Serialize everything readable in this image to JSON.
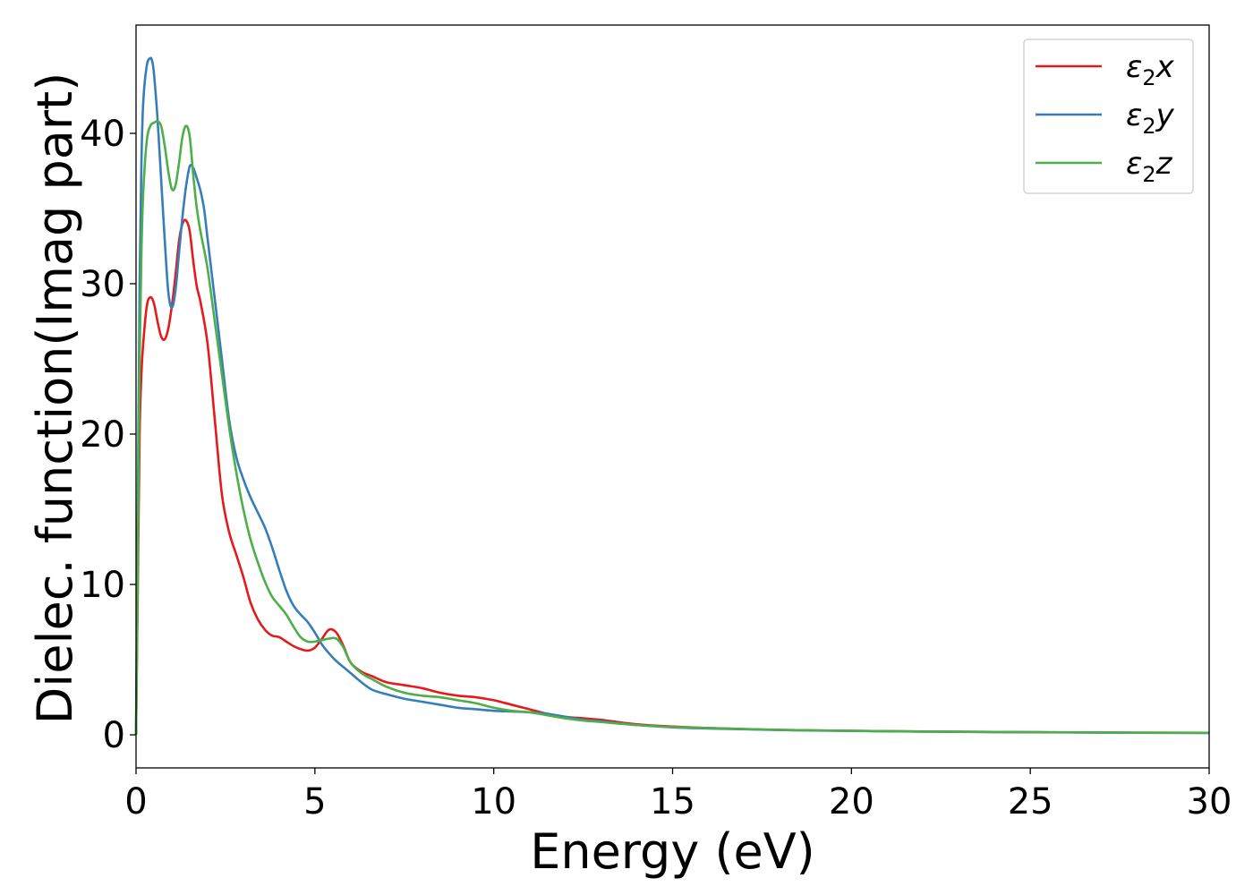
{
  "chart_data": {
    "type": "line",
    "xlabel": "Energy (eV)",
    "ylabel": "Dielec. function(Imag part)",
    "xlim": [
      0,
      30
    ],
    "ylim": [
      -2.2,
      47.2
    ],
    "xticks": [
      0,
      5,
      10,
      15,
      20,
      25,
      30
    ],
    "yticks": [
      0,
      10,
      20,
      30,
      40
    ],
    "grid": false,
    "legend_position": "top-right",
    "series": [
      {
        "name": "ε₂x",
        "legend_main": "ε",
        "legend_sub": "2",
        "legend_tail": "x",
        "color": "#e41a1c",
        "x": [
          0,
          0.05,
          0.1,
          0.15,
          0.2,
          0.3,
          0.4,
          0.5,
          0.6,
          0.7,
          0.8,
          0.9,
          1.0,
          1.1,
          1.2,
          1.3,
          1.4,
          1.5,
          1.6,
          1.7,
          1.8,
          2.0,
          2.2,
          2.4,
          2.6,
          2.8,
          3.0,
          3.2,
          3.4,
          3.6,
          3.8,
          4.0,
          4.2,
          4.4,
          4.6,
          4.8,
          5.0,
          5.2,
          5.4,
          5.6,
          5.8,
          6.0,
          6.3,
          6.6,
          7.0,
          7.5,
          8.0,
          8.5,
          9.0,
          9.5,
          10.0,
          10.5,
          11.0,
          11.5,
          12.0,
          12.5,
          13.0,
          14.0,
          15.0,
          16.0,
          18.0,
          20.0,
          22.0,
          25.0,
          28.0,
          30.0
        ],
        "y": [
          0,
          10,
          20,
          24,
          26,
          28.5,
          29.1,
          28.7,
          27.5,
          26.5,
          26.3,
          27.0,
          28.5,
          30.5,
          32.8,
          34.0,
          34.2,
          33.5,
          31.5,
          29.8,
          28.8,
          26.0,
          21.0,
          16.0,
          13.5,
          12.0,
          10.5,
          8.8,
          7.7,
          7.0,
          6.6,
          6.5,
          6.2,
          5.9,
          5.7,
          5.6,
          5.8,
          6.4,
          7.0,
          6.8,
          5.9,
          4.8,
          4.2,
          3.9,
          3.5,
          3.3,
          3.1,
          2.8,
          2.6,
          2.5,
          2.3,
          2.0,
          1.7,
          1.4,
          1.2,
          1.1,
          1.0,
          0.7,
          0.55,
          0.45,
          0.33,
          0.27,
          0.22,
          0.18,
          0.14,
          0.13
        ]
      },
      {
        "name": "ε₂y",
        "legend_main": "ε",
        "legend_sub": "2",
        "legend_tail": "y",
        "color": "#377eb8",
        "x": [
          0,
          0.05,
          0.1,
          0.15,
          0.2,
          0.3,
          0.4,
          0.45,
          0.5,
          0.6,
          0.7,
          0.8,
          0.9,
          1.0,
          1.1,
          1.2,
          1.3,
          1.4,
          1.5,
          1.6,
          1.7,
          1.8,
          1.9,
          2.0,
          2.2,
          2.4,
          2.6,
          2.8,
          3.0,
          3.2,
          3.4,
          3.6,
          3.8,
          4.0,
          4.2,
          4.4,
          4.6,
          4.8,
          5.0,
          5.2,
          5.4,
          5.6,
          5.8,
          6.0,
          6.3,
          6.6,
          7.0,
          7.5,
          8.0,
          8.5,
          9.0,
          9.5,
          10.0,
          10.5,
          11.0,
          11.5,
          12.0,
          12.5,
          13.0,
          14.0,
          15.0,
          16.0,
          18.0,
          20.0,
          22.0,
          25.0,
          28.0,
          30.0
        ],
        "y": [
          0,
          15,
          30,
          38,
          42,
          44.5,
          45.0,
          44.8,
          44.0,
          41.0,
          37.0,
          33.0,
          29.5,
          28.4,
          29.5,
          32.0,
          34.5,
          36.5,
          37.8,
          37.7,
          37.0,
          36.2,
          35.0,
          33.0,
          29.0,
          25.0,
          21.0,
          18.5,
          17.0,
          15.8,
          14.8,
          13.8,
          12.5,
          11.0,
          9.6,
          8.6,
          8.0,
          7.5,
          6.8,
          6.0,
          5.4,
          4.9,
          4.5,
          4.1,
          3.5,
          3.0,
          2.7,
          2.4,
          2.2,
          2.0,
          1.8,
          1.7,
          1.6,
          1.55,
          1.5,
          1.4,
          1.2,
          1.0,
          0.9,
          0.65,
          0.5,
          0.42,
          0.32,
          0.26,
          0.21,
          0.17,
          0.14,
          0.13
        ]
      },
      {
        "name": "ε₂z",
        "legend_main": "ε",
        "legend_sub": "2",
        "legend_tail": "z",
        "color": "#4daf4a",
        "x": [
          0,
          0.05,
          0.1,
          0.15,
          0.2,
          0.3,
          0.4,
          0.5,
          0.6,
          0.7,
          0.8,
          0.9,
          1.0,
          1.1,
          1.2,
          1.3,
          1.4,
          1.5,
          1.6,
          1.7,
          1.8,
          2.0,
          2.2,
          2.4,
          2.6,
          2.8,
          3.0,
          3.2,
          3.4,
          3.6,
          3.8,
          4.0,
          4.2,
          4.4,
          4.6,
          4.8,
          5.0,
          5.2,
          5.4,
          5.6,
          5.8,
          6.0,
          6.3,
          6.6,
          7.0,
          7.5,
          8.0,
          8.5,
          9.0,
          9.5,
          10.0,
          10.5,
          11.0,
          11.5,
          12.0,
          12.5,
          13.0,
          14.0,
          15.0,
          16.0,
          18.0,
          20.0,
          22.0,
          25.0,
          28.0,
          30.0
        ],
        "y": [
          0,
          12,
          25,
          32,
          36,
          39.5,
          40.5,
          40.7,
          40.8,
          40.5,
          39.2,
          37.5,
          36.3,
          36.5,
          38.0,
          39.8,
          40.5,
          39.8,
          37.2,
          35.0,
          33.5,
          31.0,
          27.5,
          24.0,
          20.5,
          17.5,
          15.0,
          13.0,
          11.5,
          10.2,
          9.2,
          8.6,
          8.0,
          7.2,
          6.5,
          6.2,
          6.2,
          6.3,
          6.4,
          6.4,
          5.8,
          4.8,
          4.1,
          3.7,
          3.2,
          2.8,
          2.6,
          2.5,
          2.3,
          2.1,
          1.8,
          1.6,
          1.5,
          1.3,
          1.1,
          0.95,
          0.85,
          0.65,
          0.52,
          0.45,
          0.33,
          0.27,
          0.22,
          0.18,
          0.14,
          0.13
        ]
      }
    ]
  }
}
